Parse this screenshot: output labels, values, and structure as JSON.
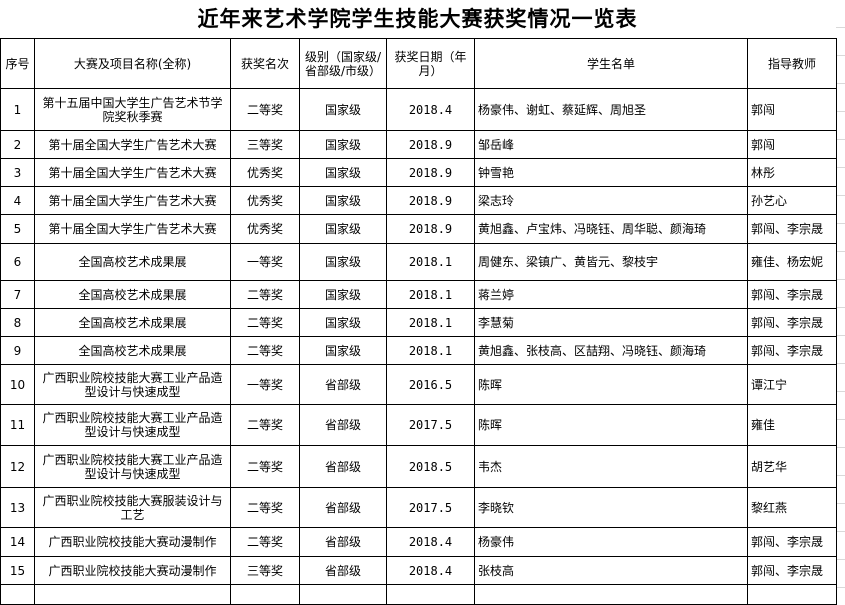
{
  "title": "近年来艺术学院学生技能大赛获奖情况一览表",
  "headers": [
    "序号",
    "大赛及项目名称(全称)",
    "获奖名次",
    "级别（国家级/省部级/市级）",
    "获奖日期（年月）",
    "学生名单",
    "指导教师"
  ],
  "rows": [
    {
      "no": "1",
      "name": "第十五届中国大学生广告艺术节学院奖秋季赛",
      "rank": "二等奖",
      "level": "国家级",
      "date": "2018.4",
      "students": "杨豪伟、谢虹、蔡延辉、周旭圣",
      "teacher": "郭闯"
    },
    {
      "no": "2",
      "name": "第十届全国大学生广告艺术大赛",
      "rank": "三等奖",
      "level": "国家级",
      "date": "2018.9",
      "students": "邹岳峰",
      "teacher": "郭闯"
    },
    {
      "no": "3",
      "name": "第十届全国大学生广告艺术大赛",
      "rank": "优秀奖",
      "level": "国家级",
      "date": "2018.9",
      "students": "钟雪艳",
      "teacher": "林彤"
    },
    {
      "no": "4",
      "name": "第十届全国大学生广告艺术大赛",
      "rank": "优秀奖",
      "level": "国家级",
      "date": "2018.9",
      "students": "梁志玲",
      "teacher": "孙艺心"
    },
    {
      "no": "5",
      "name": "第十届全国大学生广告艺术大赛",
      "rank": "优秀奖",
      "level": "国家级",
      "date": "2018.9",
      "students": "黄旭鑫、卢宝炜、冯晓钰、周华聪、颜海琦",
      "teacher": "郭闯、李宗晟"
    },
    {
      "no": "6",
      "name": "全国高校艺术成果展",
      "rank": "一等奖",
      "level": "国家级",
      "date": "2018.1",
      "students": "周健东、梁镇广、黄皆元、黎枝宇",
      "teacher": "雍佳、杨宏妮"
    },
    {
      "no": "7",
      "name": "全国高校艺术成果展",
      "rank": "二等奖",
      "level": "国家级",
      "date": "2018.1",
      "students": "蒋兰婷",
      "teacher": "郭闯、李宗晟"
    },
    {
      "no": "8",
      "name": "全国高校艺术成果展",
      "rank": "二等奖",
      "level": "国家级",
      "date": "2018.1",
      "students": "李慧菊",
      "teacher": "郭闯、李宗晟"
    },
    {
      "no": "9",
      "name": "全国高校艺术成果展",
      "rank": "二等奖",
      "level": "国家级",
      "date": "2018.1",
      "students": "黄旭鑫、张枝高、区喆翔、冯晓钰、颜海琦",
      "teacher": "郭闯、李宗晟"
    },
    {
      "no": "10",
      "name": "广西职业院校技能大赛工业产品造型设计与快速成型",
      "rank": "一等奖",
      "level": "省部级",
      "date": "2016.5",
      "students": "陈晖",
      "teacher": "谭江宁"
    },
    {
      "no": "11",
      "name": "广西职业院校技能大赛工业产品造型设计与快速成型",
      "rank": "二等奖",
      "level": "省部级",
      "date": "2017.5",
      "students": "陈晖",
      "teacher": "雍佳"
    },
    {
      "no": "12",
      "name": "广西职业院校技能大赛工业产品造型设计与快速成型",
      "rank": "二等奖",
      "level": "省部级",
      "date": "2018.5",
      "students": "韦杰",
      "teacher": "胡艺华"
    },
    {
      "no": "13",
      "name": "广西职业院校技能大赛服装设计与工艺",
      "rank": "二等奖",
      "level": "省部级",
      "date": "2017.5",
      "students": "李晓钦",
      "teacher": "黎红燕"
    },
    {
      "no": "14",
      "name": "广西职业院校技能大赛动漫制作",
      "rank": "二等奖",
      "level": "省部级",
      "date": "2018.4",
      "students": "杨豪伟",
      "teacher": "郭闯、李宗晟"
    },
    {
      "no": "15",
      "name": "广西职业院校技能大赛动漫制作",
      "rank": "三等奖",
      "level": "省部级",
      "date": "2018.4",
      "students": "张枝高",
      "teacher": "郭闯、李宗晟"
    },
    {
      "no": "",
      "name": "",
      "rank": "",
      "level": "",
      "date": "",
      "students": "",
      "teacher": ""
    }
  ]
}
